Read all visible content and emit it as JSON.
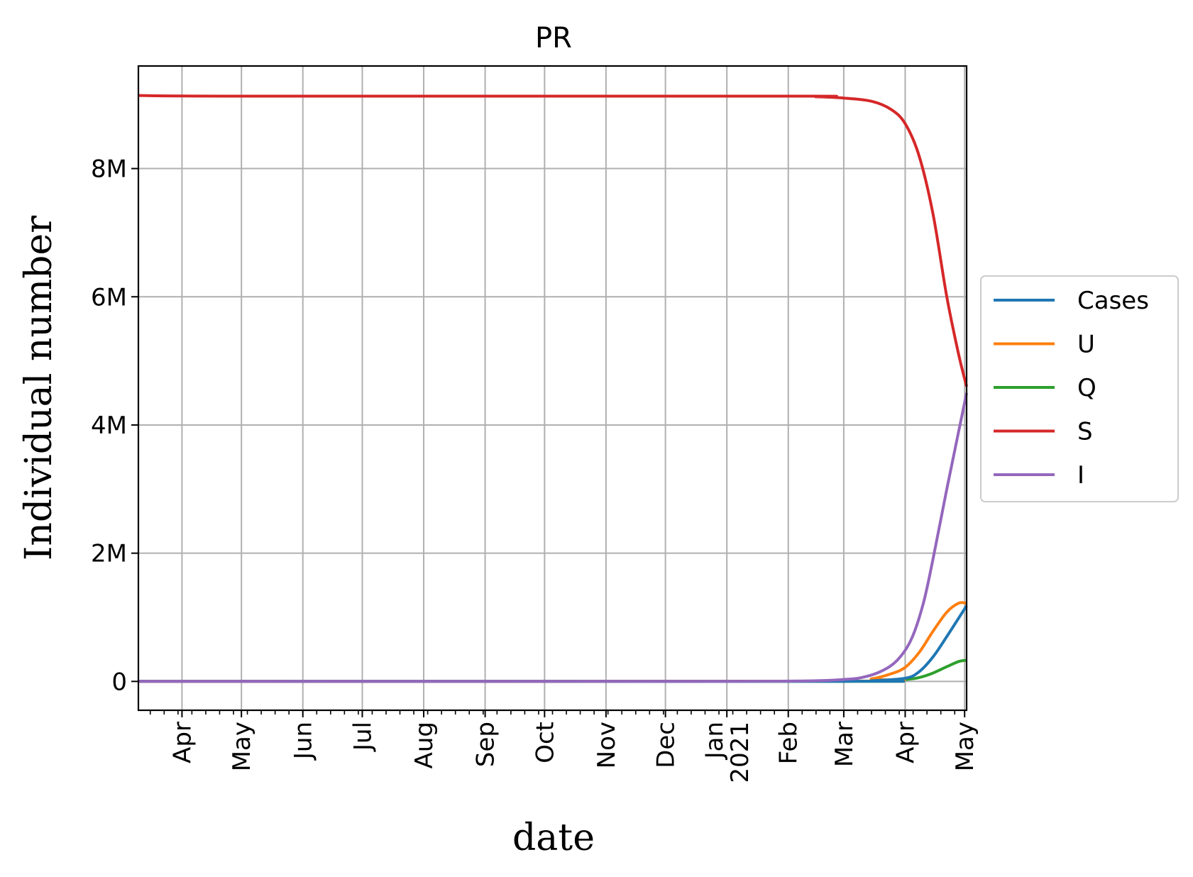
{
  "chart_data": {
    "type": "line",
    "title": "PR",
    "xlabel": "date",
    "ylabel": "Individual number",
    "x_start": "2020-03-10",
    "x_end": "2021-05-02",
    "ylim": [
      -450000,
      9600000
    ],
    "yticks": [
      {
        "value": 0,
        "label": "0"
      },
      {
        "value": 2000000,
        "label": "2M"
      },
      {
        "value": 4000000,
        "label": "4M"
      },
      {
        "value": 6000000,
        "label": "6M"
      },
      {
        "value": 8000000,
        "label": "8M"
      }
    ],
    "xticks": [
      {
        "date": "2020-04-01",
        "label": "Apr"
      },
      {
        "date": "2020-05-01",
        "label": "May"
      },
      {
        "date": "2020-06-01",
        "label": "Jun"
      },
      {
        "date": "2020-07-01",
        "label": "Jul"
      },
      {
        "date": "2020-08-01",
        "label": "Aug"
      },
      {
        "date": "2020-09-01",
        "label": "Sep"
      },
      {
        "date": "2020-10-01",
        "label": "Oct"
      },
      {
        "date": "2020-11-01",
        "label": "Nov"
      },
      {
        "date": "2020-12-01",
        "label": "Dec"
      },
      {
        "date": "2021-01-01",
        "label": "Jan\n2021"
      },
      {
        "date": "2021-02-01",
        "label": "Feb"
      },
      {
        "date": "2021-03-01",
        "label": "Mar"
      },
      {
        "date": "2021-04-01",
        "label": "Apr"
      },
      {
        "date": "2021-05-01",
        "label": "May"
      }
    ],
    "grid": true,
    "legend_position": "center-right outside",
    "series": [
      {
        "name": "Cases",
        "color": "#1f77b4",
        "points": [
          [
            "2020-03-10",
            0
          ],
          [
            "2021-03-01",
            2000
          ],
          [
            "2021-03-15",
            10000
          ],
          [
            "2021-04-01",
            50000
          ],
          [
            "2021-04-08",
            150000
          ],
          [
            "2021-04-15",
            380000
          ],
          [
            "2021-04-22",
            700000
          ],
          [
            "2021-05-02",
            1180000
          ]
        ]
      },
      {
        "name": "U",
        "color": "#ff7f0e",
        "points": [
          [
            "2020-03-10",
            0
          ],
          [
            "2021-03-01",
            5000
          ],
          [
            "2021-03-15",
            40000
          ],
          [
            "2021-03-25",
            120000
          ],
          [
            "2021-04-01",
            220000
          ],
          [
            "2021-04-08",
            450000
          ],
          [
            "2021-04-15",
            780000
          ],
          [
            "2021-04-22",
            1080000
          ],
          [
            "2021-04-28",
            1220000
          ],
          [
            "2021-05-02",
            1220000
          ]
        ]
      },
      {
        "name": "Q",
        "color": "#2ca02c",
        "points": [
          [
            "2020-03-10",
            0
          ],
          [
            "2021-03-01",
            1000
          ],
          [
            "2021-03-15",
            5000
          ],
          [
            "2021-04-01",
            30000
          ],
          [
            "2021-04-08",
            60000
          ],
          [
            "2021-04-15",
            130000
          ],
          [
            "2021-04-22",
            230000
          ],
          [
            "2021-04-28",
            310000
          ],
          [
            "2021-05-02",
            330000
          ]
        ]
      },
      {
        "name": "S",
        "color": "#d62728",
        "points": [
          [
            "2020-03-10",
            9140000
          ],
          [
            "2020-05-01",
            9130000
          ],
          [
            "2021-02-01",
            9130000
          ],
          [
            "2021-02-15",
            9120000
          ],
          [
            "2021-03-01",
            9100000
          ],
          [
            "2021-03-15",
            9050000
          ],
          [
            "2021-03-25",
            8920000
          ],
          [
            "2021-04-01",
            8700000
          ],
          [
            "2021-04-08",
            8200000
          ],
          [
            "2021-04-15",
            7300000
          ],
          [
            "2021-04-22",
            6000000
          ],
          [
            "2021-04-28",
            5100000
          ],
          [
            "2021-05-02",
            4600000
          ]
        ]
      },
      {
        "name": "I",
        "color": "#9467bd",
        "points": [
          [
            "2020-03-10",
            0
          ],
          [
            "2021-01-01",
            2000
          ],
          [
            "2021-02-01",
            5000
          ],
          [
            "2021-02-15",
            10000
          ],
          [
            "2021-03-01",
            30000
          ],
          [
            "2021-03-10",
            60000
          ],
          [
            "2021-03-20",
            160000
          ],
          [
            "2021-03-28",
            330000
          ],
          [
            "2021-04-04",
            650000
          ],
          [
            "2021-04-10",
            1200000
          ],
          [
            "2021-04-15",
            1900000
          ],
          [
            "2021-04-22",
            3000000
          ],
          [
            "2021-04-28",
            3900000
          ],
          [
            "2021-05-02",
            4500000
          ]
        ]
      }
    ]
  }
}
